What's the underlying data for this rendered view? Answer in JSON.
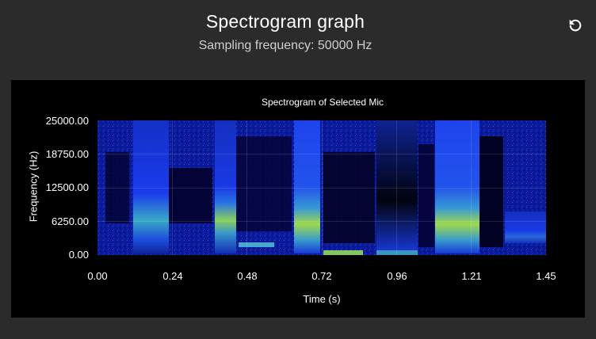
{
  "header": {
    "title": "Spectrogram graph",
    "subtitle": "Sampling frequency: 50000 Hz"
  },
  "icons": {
    "refresh": "refresh-icon"
  },
  "colors": {
    "page_background": "#2b2b2b",
    "panel_background": "#000000",
    "low_energy": "#03024a",
    "mid_energy": "#1b3df0",
    "high_energy": "#9de34a"
  },
  "chart_data": {
    "type": "heatmap",
    "title": "Spectrogram of Selected Mic",
    "xlabel": "Time (s)",
    "ylabel": "Frequency (Hz)",
    "xlim": [
      0,
      1.45
    ],
    "ylim": [
      0,
      25000
    ],
    "x_ticks": [
      "0.00",
      "0.24",
      "0.48",
      "0.72",
      "0.96",
      "1.21",
      "1.45"
    ],
    "y_ticks": [
      "25000.00",
      "18750.00",
      "12500.00",
      "6250.00",
      "0.00"
    ],
    "grid": true,
    "colormap": "jet"
  }
}
